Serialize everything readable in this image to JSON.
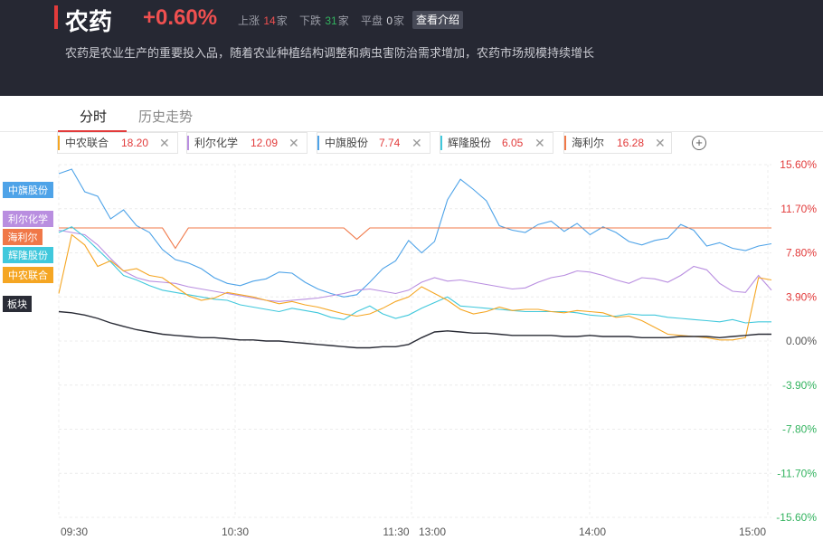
{
  "header": {
    "title": "农药",
    "change": "+0.60%",
    "rise_label": "上涨",
    "rise_count": "14",
    "fall_label": "下跌",
    "fall_count": "31",
    "flat_label": "平盘",
    "flat_count": "0",
    "unit": "家",
    "intro_button": "查看介绍",
    "description": "农药是农业生产的重要投入品，随着农业种植结构调整和病虫害防治需求增加，农药市场规模持续增长"
  },
  "tabs": [
    {
      "label": "分时",
      "active": true
    },
    {
      "label": "历史走势",
      "active": false
    }
  ],
  "stocks": [
    {
      "name": "中农联合",
      "price": "18.20",
      "color": "#f5a623"
    },
    {
      "name": "利尔化学",
      "price": "12.09",
      "color": "#b98ee0"
    },
    {
      "name": "中旗股份",
      "price": "7.74",
      "color": "#4ea3e8"
    },
    {
      "name": "辉隆股份",
      "price": "6.05",
      "color": "#40c8dc"
    },
    {
      "name": "海利尔",
      "price": "16.28",
      "color": "#f07848"
    }
  ],
  "add_icon": "plus-circle-icon",
  "close_icon": "close-x-icon",
  "chart_data": {
    "type": "line",
    "x_ticks": [
      "09:30",
      "10:30",
      "11:30",
      "13:00",
      "14:00",
      "15:00"
    ],
    "y_ticks": [
      "15.60%",
      "11.70%",
      "7.80%",
      "3.90%",
      "0.00%",
      "-3.90%",
      "-7.80%",
      "-11.70%",
      "-15.60%"
    ],
    "ylim": [
      -15.6,
      15.6
    ],
    "grid": true,
    "legend_tags": [
      {
        "label": "中旗股份",
        "color": "#4ea3e8"
      },
      {
        "label": "利尔化学",
        "color": "#b98ee0"
      },
      {
        "label": "海利尔",
        "color": "#f07848"
      },
      {
        "label": "辉隆股份",
        "color": "#40c8dc"
      },
      {
        "label": "中农联合",
        "color": "#f5a623"
      },
      {
        "label": "板块",
        "color": "#2a2c36"
      }
    ],
    "series": [
      {
        "name": "中旗股份",
        "color": "#4ea3e8",
        "values": [
          14.8,
          15.2,
          13.2,
          12.8,
          10.8,
          11.6,
          10.2,
          9.6,
          8.1,
          7.2,
          6.9,
          6.4,
          5.6,
          5.1,
          4.9,
          5.3,
          5.5,
          6.1,
          6.0,
          5.2,
          4.6,
          4.2,
          3.9,
          4.1,
          5.2,
          6.4,
          7.1,
          8.9,
          7.8,
          8.8,
          12.5,
          14.3,
          13.4,
          12.4,
          10.2,
          9.8,
          9.6,
          10.3,
          10.6,
          9.7,
          10.4,
          9.4,
          10.1,
          9.6,
          8.8,
          8.5,
          8.9,
          9.1,
          10.3,
          9.8,
          8.4,
          8.7,
          8.2,
          8.0,
          8.4,
          8.6
        ]
      },
      {
        "name": "利尔化学",
        "color": "#b98ee0",
        "values": [
          9.8,
          9.6,
          9.4,
          8.5,
          7.3,
          6.2,
          5.6,
          5.3,
          5.2,
          5.1,
          4.8,
          4.6,
          4.4,
          4.2,
          4.0,
          3.8,
          3.6,
          3.5,
          3.6,
          3.7,
          3.8,
          4.0,
          4.2,
          4.5,
          4.6,
          4.4,
          4.2,
          4.5,
          5.2,
          5.6,
          5.3,
          5.4,
          5.2,
          5.0,
          4.8,
          4.6,
          4.7,
          5.2,
          5.6,
          5.8,
          6.2,
          6.1,
          5.8,
          5.4,
          5.1,
          5.6,
          5.5,
          5.2,
          5.8,
          6.6,
          6.3,
          5.1,
          4.4,
          4.3,
          5.8,
          4.5
        ]
      },
      {
        "name": "海利尔",
        "color": "#f07848",
        "values": [
          10.0,
          10.0,
          10.0,
          10.0,
          10.0,
          10.0,
          10.0,
          10.0,
          10.0,
          8.2,
          10.0,
          10.0,
          10.0,
          10.0,
          10.0,
          10.0,
          10.0,
          10.0,
          10.0,
          10.0,
          10.0,
          10.0,
          10.0,
          9.0,
          10.0,
          10.0,
          10.0,
          10.0,
          10.0,
          10.0,
          10.0,
          10.0,
          10.0,
          10.0,
          10.0,
          10.0,
          10.0,
          10.0,
          10.0,
          10.0,
          10.0,
          10.0,
          10.0,
          10.0,
          10.0,
          10.0,
          10.0,
          10.0,
          10.0,
          10.0,
          10.0,
          10.0,
          10.0,
          10.0,
          10.0,
          10.0
        ]
      },
      {
        "name": "辉隆股份",
        "color": "#40c8dc",
        "values": [
          9.6,
          10.1,
          9.2,
          8.1,
          7.0,
          5.8,
          5.4,
          4.9,
          4.5,
          4.3,
          4.1,
          3.9,
          3.7,
          3.6,
          3.2,
          3.0,
          2.8,
          2.6,
          2.9,
          2.7,
          2.5,
          2.1,
          1.9,
          2.6,
          3.1,
          2.4,
          2.0,
          2.3,
          2.9,
          3.4,
          3.9,
          3.1,
          3.0,
          2.9,
          2.8,
          2.7,
          2.6,
          2.6,
          2.6,
          2.6,
          2.5,
          2.3,
          2.2,
          2.2,
          2.4,
          2.3,
          2.3,
          2.1,
          2.0,
          1.9,
          1.8,
          1.7,
          1.9,
          1.6,
          1.7,
          1.7
        ]
      },
      {
        "name": "中农联合",
        "color": "#f5a623",
        "values": [
          4.2,
          9.4,
          8.5,
          6.6,
          7.1,
          6.2,
          6.4,
          5.8,
          5.6,
          4.8,
          4.0,
          3.6,
          3.8,
          4.3,
          4.1,
          3.9,
          3.6,
          3.3,
          3.5,
          3.2,
          3.0,
          2.7,
          2.4,
          2.2,
          2.4,
          2.9,
          3.5,
          3.9,
          4.8,
          4.2,
          3.6,
          2.8,
          2.4,
          2.6,
          3.0,
          2.7,
          2.8,
          2.8,
          2.6,
          2.5,
          2.7,
          2.6,
          2.5,
          2.1,
          2.2,
          1.8,
          1.2,
          0.6,
          0.5,
          0.4,
          0.3,
          0.1,
          0.1,
          0.3,
          5.6,
          5.4
        ]
      },
      {
        "name": "板块",
        "color": "#2a2c36",
        "values": [
          2.6,
          2.5,
          2.3,
          2.0,
          1.6,
          1.3,
          1.0,
          0.8,
          0.6,
          0.5,
          0.4,
          0.3,
          0.3,
          0.2,
          0.1,
          0.1,
          0.0,
          0.0,
          -0.1,
          -0.2,
          -0.3,
          -0.4,
          -0.5,
          -0.6,
          -0.6,
          -0.5,
          -0.5,
          -0.3,
          0.3,
          0.8,
          0.9,
          0.8,
          0.7,
          0.7,
          0.6,
          0.5,
          0.5,
          0.5,
          0.5,
          0.4,
          0.4,
          0.5,
          0.4,
          0.4,
          0.4,
          0.3,
          0.3,
          0.3,
          0.4,
          0.4,
          0.4,
          0.3,
          0.4,
          0.5,
          0.6,
          0.6
        ]
      }
    ]
  }
}
